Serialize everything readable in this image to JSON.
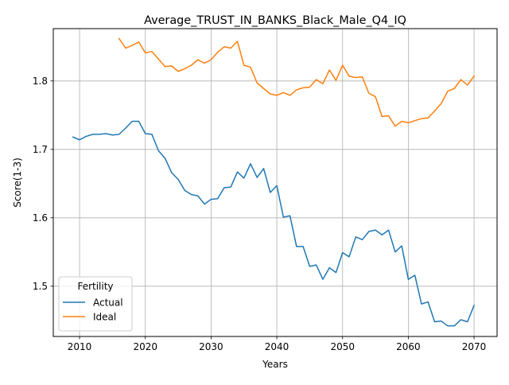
{
  "chart_data": {
    "type": "line",
    "title": "Average_TRUST_IN_BANKS_Black_Male_Q4_IQ",
    "xlabel": "Years",
    "ylabel": "Score(1-3)",
    "xlim": [
      2006,
      2073.5
    ],
    "ylim": [
      1.4265,
      1.8765
    ],
    "xticks": [
      2010,
      2020,
      2030,
      2040,
      2050,
      2060,
      2070
    ],
    "yticks": [
      1.5,
      1.6,
      1.7,
      1.8
    ],
    "xtick_labels": [
      "2010",
      "2020",
      "2030",
      "2040",
      "2050",
      "2060",
      "2070"
    ],
    "ytick_labels": [
      "1.5",
      "1.6",
      "1.7",
      "1.8"
    ],
    "grid": true,
    "legend": {
      "title": "Fertility",
      "position": "lower-left"
    },
    "series": [
      {
        "name": "Actual",
        "color": "#1f77b4",
        "x_start": 2009,
        "values": [
          1.718,
          1.714,
          1.719,
          1.722,
          1.722,
          1.723,
          1.721,
          1.722,
          1.731,
          1.741,
          1.741,
          1.723,
          1.722,
          1.698,
          1.687,
          1.666,
          1.656,
          1.64,
          1.634,
          1.632,
          1.62,
          1.627,
          1.628,
          1.644,
          1.645,
          1.667,
          1.658,
          1.679,
          1.659,
          1.672,
          1.637,
          1.647,
          1.601,
          1.603,
          1.558,
          1.558,
          1.529,
          1.531,
          1.51,
          1.527,
          1.52,
          1.549,
          1.543,
          1.572,
          1.568,
          1.58,
          1.582,
          1.575,
          1.582,
          1.55,
          1.559,
          1.51,
          1.516,
          1.474,
          1.477,
          1.448,
          1.449,
          1.442,
          1.442,
          1.451,
          1.448,
          1.472
        ]
      },
      {
        "name": "Ideal",
        "color": "#ff7f0e",
        "x_start": 2016,
        "values": [
          1.862,
          1.848,
          1.852,
          1.857,
          1.841,
          1.843,
          1.832,
          1.821,
          1.822,
          1.814,
          1.818,
          1.823,
          1.831,
          1.826,
          1.831,
          1.842,
          1.85,
          1.848,
          1.858,
          1.823,
          1.82,
          1.797,
          1.789,
          1.781,
          1.779,
          1.783,
          1.779,
          1.787,
          1.79,
          1.791,
          1.802,
          1.796,
          1.816,
          1.801,
          1.823,
          1.807,
          1.805,
          1.806,
          1.782,
          1.777,
          1.748,
          1.749,
          1.734,
          1.741,
          1.739,
          1.742,
          1.745,
          1.746,
          1.756,
          1.767,
          1.785,
          1.789,
          1.802,
          1.794,
          1.807
        ]
      }
    ]
  }
}
